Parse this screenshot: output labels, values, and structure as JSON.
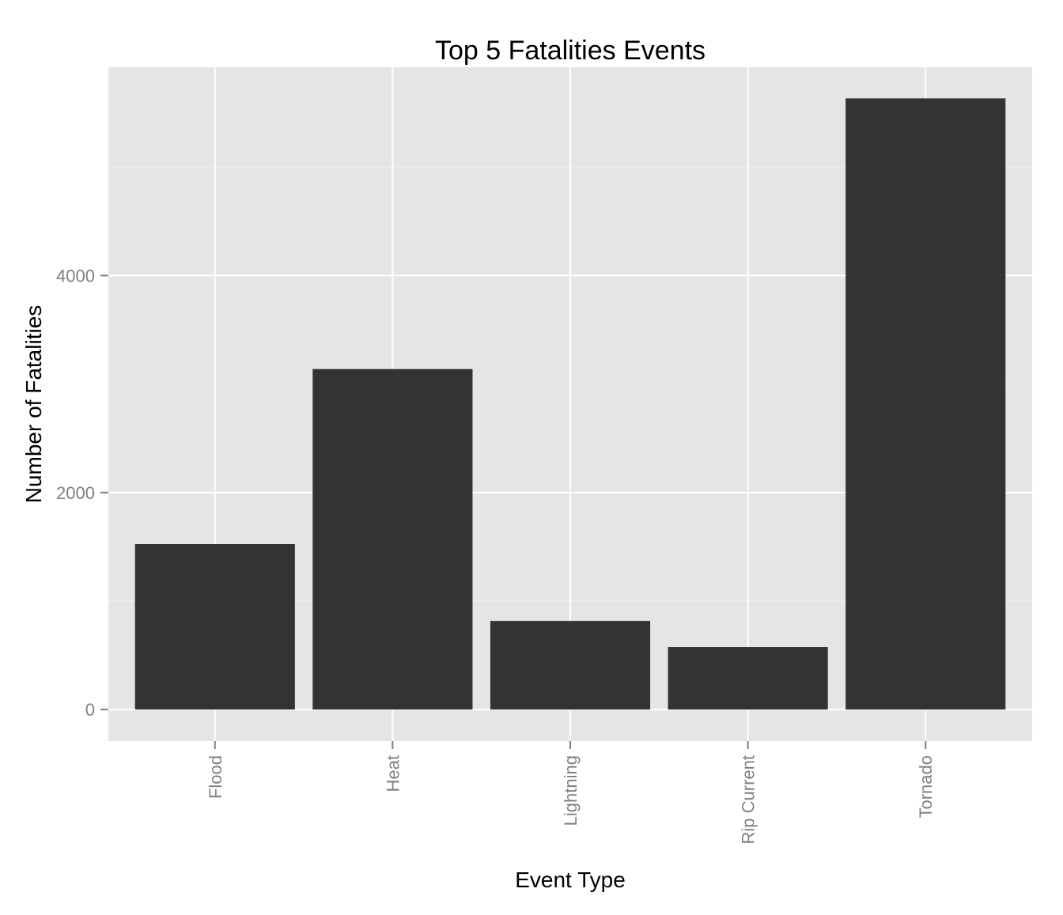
{
  "chart_data": {
    "type": "bar",
    "title": "Top 5 Fatalities Events",
    "xlabel": "Event Type",
    "ylabel": "Number of Fatalities",
    "categories": [
      "Flood",
      "Heat",
      "Lightning",
      "Rip Current",
      "Tornado"
    ],
    "values": [
      1525,
      3138,
      817,
      577,
      5633
    ],
    "ylim": [
      -290,
      5920
    ],
    "yticks": [
      0,
      2000,
      4000
    ],
    "ytick_labels": [
      "0",
      "2000",
      "4000"
    ],
    "x_tick_rotation": "vertical",
    "grid": true,
    "legend": "none",
    "colors": {
      "bar": "#333333",
      "panel_background": "#e5e5e5",
      "grid_major": "#ffffff",
      "grid_minor": "#f2f2f2",
      "tick_label": "#808080",
      "title": "#000000"
    }
  }
}
